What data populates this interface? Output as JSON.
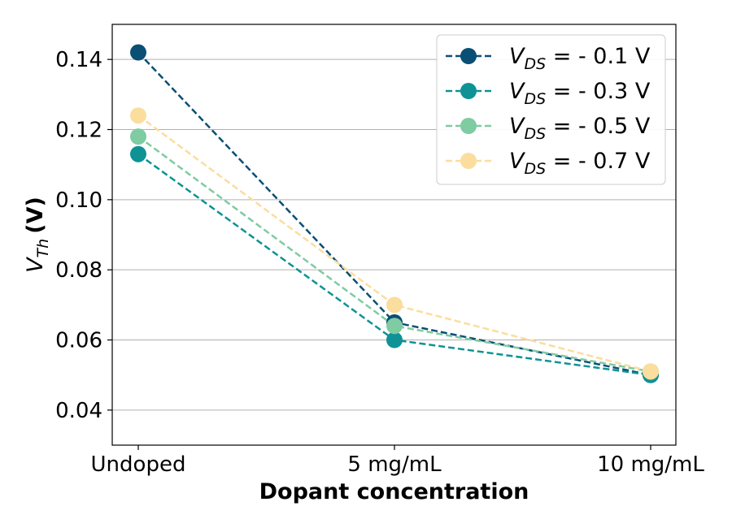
{
  "chart_data": {
    "type": "line",
    "categories": [
      "Undoped",
      "5 mg/mL",
      "10 mg/mL"
    ],
    "xlabel": "Dopant concentration",
    "ylabel": {
      "var": "V",
      "sub": "Th",
      "unit": "(V)"
    },
    "ylim": [
      0.03,
      0.15
    ],
    "yticks": [
      0.04,
      0.06,
      0.08,
      0.1,
      0.12,
      0.14
    ],
    "ytick_labels": [
      "0.04",
      "0.06",
      "0.08",
      "0.10",
      "0.12",
      "0.14"
    ],
    "grid": "horizontal",
    "legend_position": "top-right",
    "line_style": "dashed",
    "series": [
      {
        "name": "V_DS = - 0.1 V",
        "var": "V",
        "sub": "DS",
        "label": " = - 0.1 V",
        "color": "#0a4f74",
        "values": [
          0.142,
          0.065,
          0.05
        ]
      },
      {
        "name": "V_DS = - 0.3 V",
        "var": "V",
        "sub": "DS",
        "label": " = - 0.3 V",
        "color": "#0e9296",
        "values": [
          0.113,
          0.06,
          0.05
        ]
      },
      {
        "name": "V_DS = - 0.5 V",
        "var": "V",
        "sub": "DS",
        "label": " = - 0.5 V",
        "color": "#7fcba2",
        "values": [
          0.118,
          0.064,
          0.051
        ]
      },
      {
        "name": "V_DS = - 0.7 V",
        "var": "V",
        "sub": "DS",
        "label": " = - 0.7 V",
        "color": "#fbdd9e",
        "values": [
          0.124,
          0.07,
          0.051
        ]
      }
    ]
  }
}
